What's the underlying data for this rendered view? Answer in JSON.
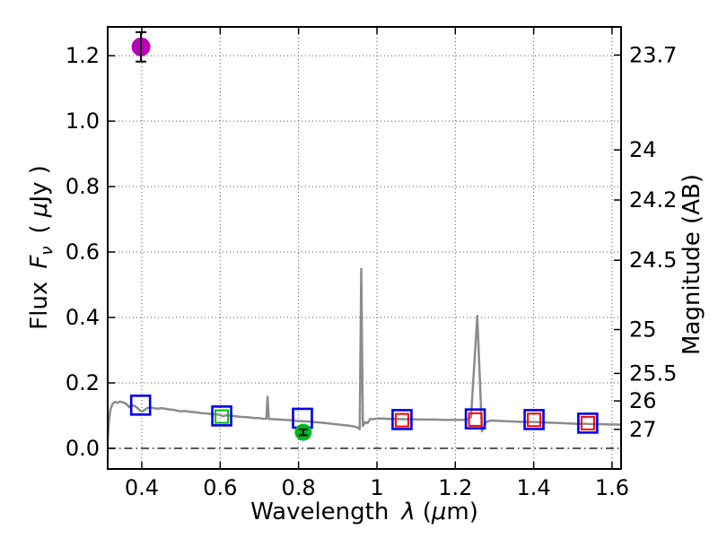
{
  "chart_data": {
    "type": "line",
    "title": "",
    "xlabel": "Wavelength λ (μm)",
    "ylabel": "Flux Fν ( μJy )",
    "ylabel_right": "Magnitude (AB)",
    "label_parts": {
      "x": {
        "prefix": "Wavelength",
        "symbol": "λ",
        "unit_open": "(",
        "mu": "μ",
        "unit_close": "m)"
      },
      "y_left": {
        "prefix": "Flux",
        "symbol": "F",
        "subscript": "ν",
        "unit_open": "( ",
        "mu": "μ",
        "unit_close": "Jy )"
      },
      "y_right": "Magnitude (AB)"
    },
    "xlim": [
      0.313,
      1.623
    ],
    "ylim": [
      -0.063,
      1.288
    ],
    "grid": "dotted",
    "zero_line": true,
    "legend": "none",
    "x_ticks": [
      {
        "value": 0.4,
        "label": "0.4"
      },
      {
        "value": 0.6,
        "label": "0.6"
      },
      {
        "value": 0.8,
        "label": "0.8"
      },
      {
        "value": 1.0,
        "label": "1"
      },
      {
        "value": 1.2,
        "label": "1.2"
      },
      {
        "value": 1.4,
        "label": "1.4"
      },
      {
        "value": 1.6,
        "label": "1.6"
      }
    ],
    "y_ticks": [
      {
        "value": 0.0,
        "label": "0.0"
      },
      {
        "value": 0.2,
        "label": "0.2"
      },
      {
        "value": 0.4,
        "label": "0.4"
      },
      {
        "value": 0.6,
        "label": "0.6"
      },
      {
        "value": 0.8,
        "label": "0.8"
      },
      {
        "value": 1.0,
        "label": "1.0"
      },
      {
        "value": 1.2,
        "label": "1.2"
      }
    ],
    "right_ticks": [
      {
        "flux": 1.202,
        "label": "23.7"
      },
      {
        "flux": 0.912,
        "label": "24"
      },
      {
        "flux": 0.759,
        "label": "24.2"
      },
      {
        "flux": 0.575,
        "label": "24.5"
      },
      {
        "flux": 0.363,
        "label": "25"
      },
      {
        "flux": 0.229,
        "label": "25.5"
      },
      {
        "flux": 0.145,
        "label": "26"
      },
      {
        "flux": 0.058,
        "label": "27"
      }
    ],
    "colors": {
      "spectrum": "#8c8c8c",
      "model_square": "#0000ee",
      "observed_red": "#ff0000",
      "observed_green": "#00bb00",
      "upper_point": "#bb00bb",
      "green_circle": "#00b922",
      "error_bar": "#000000",
      "grid": "#555555",
      "zero_line": "#222222",
      "spine": "#000000"
    },
    "series": [
      {
        "name": "model-spectrum",
        "kind": "line",
        "color": "#8c8c8c",
        "width": 2.5,
        "points": [
          [
            0.313,
            0.03
          ],
          [
            0.316,
            0.08
          ],
          [
            0.32,
            0.12
          ],
          [
            0.326,
            0.137
          ],
          [
            0.332,
            0.142
          ],
          [
            0.338,
            0.139
          ],
          [
            0.344,
            0.143
          ],
          [
            0.35,
            0.141
          ],
          [
            0.356,
            0.139
          ],
          [
            0.362,
            0.134
          ],
          [
            0.368,
            0.126
          ],
          [
            0.372,
            0.13
          ],
          [
            0.378,
            0.131
          ],
          [
            0.384,
            0.128
          ],
          [
            0.39,
            0.122
          ],
          [
            0.396,
            0.116
          ],
          [
            0.401,
            0.112
          ],
          [
            0.407,
            0.117
          ],
          [
            0.414,
            0.123
          ],
          [
            0.422,
            0.125
          ],
          [
            0.43,
            0.123
          ],
          [
            0.44,
            0.121
          ],
          [
            0.45,
            0.123
          ],
          [
            0.46,
            0.121
          ],
          [
            0.47,
            0.119
          ],
          [
            0.48,
            0.118
          ],
          [
            0.49,
            0.115
          ],
          [
            0.5,
            0.113
          ],
          [
            0.51,
            0.114
          ],
          [
            0.52,
            0.112
          ],
          [
            0.53,
            0.111
          ],
          [
            0.54,
            0.11
          ],
          [
            0.55,
            0.108
          ],
          [
            0.56,
            0.107
          ],
          [
            0.57,
            0.106
          ],
          [
            0.58,
            0.105
          ],
          [
            0.59,
            0.104
          ],
          [
            0.6,
            0.102
          ],
          [
            0.608,
            0.098
          ],
          [
            0.615,
            0.101
          ],
          [
            0.625,
            0.1
          ],
          [
            0.64,
            0.098
          ],
          [
            0.655,
            0.096
          ],
          [
            0.67,
            0.095
          ],
          [
            0.685,
            0.093
          ],
          [
            0.7,
            0.092
          ],
          [
            0.712,
            0.09
          ],
          [
            0.718,
            0.091
          ],
          [
            0.721,
            0.158
          ],
          [
            0.724,
            0.09
          ],
          [
            0.735,
            0.089
          ],
          [
            0.75,
            0.088
          ],
          [
            0.765,
            0.087
          ],
          [
            0.78,
            0.086
          ],
          [
            0.795,
            0.084
          ],
          [
            0.81,
            0.083
          ],
          [
            0.825,
            0.082
          ],
          [
            0.84,
            0.08
          ],
          [
            0.855,
            0.079
          ],
          [
            0.87,
            0.077
          ],
          [
            0.885,
            0.075
          ],
          [
            0.9,
            0.073
          ],
          [
            0.915,
            0.071
          ],
          [
            0.93,
            0.069
          ],
          [
            0.945,
            0.066
          ],
          [
            0.953,
            0.062
          ],
          [
            0.956,
            0.058
          ],
          [
            0.96,
            0.548
          ],
          [
            0.964,
            0.068
          ],
          [
            0.97,
            0.08
          ],
          [
            0.976,
            0.077
          ],
          [
            0.983,
            0.09
          ],
          [
            0.99,
            0.089
          ],
          [
            1.0,
            0.091
          ],
          [
            1.015,
            0.091
          ],
          [
            1.03,
            0.09
          ],
          [
            1.05,
            0.09
          ],
          [
            1.07,
            0.089
          ],
          [
            1.09,
            0.089
          ],
          [
            1.11,
            0.088
          ],
          [
            1.13,
            0.088
          ],
          [
            1.15,
            0.088
          ],
          [
            1.17,
            0.087
          ],
          [
            1.19,
            0.087
          ],
          [
            1.21,
            0.087
          ],
          [
            1.228,
            0.087
          ],
          [
            1.24,
            0.095
          ],
          [
            1.256,
            0.405
          ],
          [
            1.268,
            0.052
          ],
          [
            1.278,
            0.08
          ],
          [
            1.29,
            0.085
          ],
          [
            1.31,
            0.084
          ],
          [
            1.33,
            0.083
          ],
          [
            1.35,
            0.082
          ],
          [
            1.37,
            0.081
          ],
          [
            1.39,
            0.081
          ],
          [
            1.41,
            0.08
          ],
          [
            1.43,
            0.079
          ],
          [
            1.45,
            0.078
          ],
          [
            1.47,
            0.077
          ],
          [
            1.49,
            0.076
          ],
          [
            1.51,
            0.075
          ],
          [
            1.53,
            0.075
          ],
          [
            1.55,
            0.074
          ],
          [
            1.57,
            0.074
          ],
          [
            1.59,
            0.073
          ],
          [
            1.61,
            0.073
          ],
          [
            1.623,
            0.072
          ]
        ]
      },
      {
        "name": "model-photometry-squares",
        "kind": "scatter",
        "marker": "open-square",
        "color": "#0000ee",
        "size": 21,
        "stroke": 2.6,
        "points": [
          [
            0.397,
            0.132
          ],
          [
            0.604,
            0.099
          ],
          [
            0.81,
            0.092
          ],
          [
            1.064,
            0.088
          ],
          [
            1.251,
            0.09
          ],
          [
            1.401,
            0.088
          ],
          [
            1.538,
            0.077
          ]
        ]
      },
      {
        "name": "observed-photometry-green-square",
        "kind": "scatter",
        "marker": "open-square",
        "color": "#00bb00",
        "size": 14,
        "stroke": 2,
        "points": [
          [
            0.604,
            0.097
          ]
        ]
      },
      {
        "name": "observed-photometry-red-squares",
        "kind": "scatter",
        "marker": "open-square",
        "color": "#ff0000",
        "size": 14,
        "stroke": 2,
        "points": [
          [
            1.064,
            0.086
          ],
          [
            1.251,
            0.088
          ],
          [
            1.401,
            0.087
          ],
          [
            1.538,
            0.077
          ]
        ]
      },
      {
        "name": "upper-limit-magenta-circle",
        "kind": "scatter",
        "marker": "filled-circle",
        "color": "#bb00bb",
        "size": 21,
        "yerr": 0.045,
        "cap": 6,
        "points": [
          [
            0.398,
            1.227
          ]
        ]
      },
      {
        "name": "observed-green-circle",
        "kind": "scatter",
        "marker": "filled-circle",
        "color": "#00b922",
        "size": 19,
        "yerr": 0.009,
        "cap": 5,
        "points": [
          [
            0.812,
            0.049
          ]
        ]
      }
    ]
  }
}
